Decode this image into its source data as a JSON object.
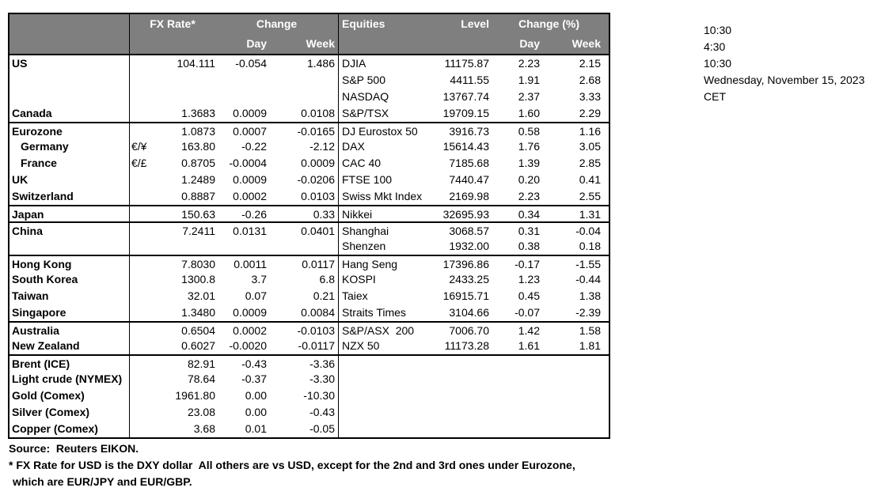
{
  "colors": {
    "header_bg": "#7f7f7f",
    "header_text": "#ffffff",
    "border": "#000000"
  },
  "table": {
    "header": {
      "fx_rate": "FX Rate*",
      "change": "Change",
      "day": "Day",
      "week": "Week",
      "equities": "Equities",
      "level": "Level",
      "change_pct": "Change (%)"
    },
    "rows": [
      {
        "label": "US",
        "indent": false,
        "sep": false,
        "pair": "",
        "fx": "104.111",
        "day": "-0.054",
        "week": "1.486",
        "eq": "DJIA",
        "level": "11175.87",
        "eq_day": "2.23",
        "eq_week": "2.15"
      },
      {
        "label": "",
        "indent": false,
        "sep": false,
        "pair": "",
        "fx": "",
        "day": "",
        "week": "",
        "eq": "S&P 500",
        "level": "4411.55",
        "eq_day": "1.91",
        "eq_week": "2.68"
      },
      {
        "label": "",
        "indent": false,
        "sep": false,
        "pair": "",
        "fx": "",
        "day": "",
        "week": "",
        "eq": "NASDAQ",
        "level": "13767.74",
        "eq_day": "2.37",
        "eq_week": "3.33"
      },
      {
        "label": "Canada",
        "indent": false,
        "sep": false,
        "pair": "",
        "fx": "1.3683",
        "day": "0.0009",
        "week": "0.0108",
        "eq": "S&P/TSX",
        "level": "19709.15",
        "eq_day": "1.60",
        "eq_week": "2.29"
      },
      {
        "label": "Eurozone",
        "indent": false,
        "sep": true,
        "pair": "",
        "fx": "1.0873",
        "day": "0.0007",
        "week": "-0.0165",
        "eq": "DJ Eurostox 50",
        "level": "3916.73",
        "eq_day": "0.58",
        "eq_week": "1.16"
      },
      {
        "label": "Germany",
        "indent": true,
        "sep": false,
        "pair": "€/¥",
        "fx": "163.80",
        "day": "-0.22",
        "week": "-2.12",
        "eq": "DAX",
        "level": "15614.43",
        "eq_day": "1.76",
        "eq_week": "3.05"
      },
      {
        "label": "France",
        "indent": true,
        "sep": false,
        "pair": "€/£",
        "fx": "0.8705",
        "day": "-0.0004",
        "week": "0.0009",
        "eq": "CAC 40",
        "level": "7185.68",
        "eq_day": "1.39",
        "eq_week": "2.85"
      },
      {
        "label": "UK",
        "indent": false,
        "sep": false,
        "pair": "",
        "fx": "1.2489",
        "day": "0.0009",
        "week": "-0.0206",
        "eq": "FTSE 100",
        "level": "7440.47",
        "eq_day": "0.20",
        "eq_week": "0.41"
      },
      {
        "label": "Switzerland",
        "indent": false,
        "sep": false,
        "pair": "",
        "fx": "0.8887",
        "day": "0.0002",
        "week": "0.0103",
        "eq": "Swiss Mkt Index",
        "level": "2169.98",
        "eq_day": "2.23",
        "eq_week": "2.55"
      },
      {
        "label": "Japan",
        "indent": false,
        "sep": true,
        "pair": "",
        "fx": "150.63",
        "day": "-0.26",
        "week": "0.33",
        "eq": "Nikkei",
        "level": "32695.93",
        "eq_day": "0.34",
        "eq_week": "1.31"
      },
      {
        "label": "China",
        "indent": false,
        "sep": true,
        "pair": "",
        "fx": "7.2411",
        "day": "0.0131",
        "week": "0.0401",
        "eq": "Shanghai",
        "level": "3068.57",
        "eq_day": "0.31",
        "eq_week": "-0.04"
      },
      {
        "label": "",
        "indent": false,
        "sep": false,
        "pair": "",
        "fx": "",
        "day": "",
        "week": "",
        "eq": "Shenzen",
        "level": "1932.00",
        "eq_day": "0.38",
        "eq_week": "0.18"
      },
      {
        "label": "Hong Kong",
        "indent": false,
        "sep": true,
        "pair": "",
        "fx": "7.8030",
        "day": "0.0011",
        "week": "0.0117",
        "eq": "Hang Seng",
        "level": "17396.86",
        "eq_day": "-0.17",
        "eq_week": "-1.55"
      },
      {
        "label": "South Korea",
        "indent": false,
        "sep": false,
        "pair": "",
        "fx": "1300.8",
        "day": "3.7",
        "week": "6.8",
        "eq": "KOSPI",
        "level": "2433.25",
        "eq_day": "1.23",
        "eq_week": "-0.44"
      },
      {
        "label": "Taiwan",
        "indent": false,
        "sep": false,
        "pair": "",
        "fx": "32.01",
        "day": "0.07",
        "week": "0.21",
        "eq": "Taiex",
        "level": "16915.71",
        "eq_day": "0.45",
        "eq_week": "1.38"
      },
      {
        "label": "Singapore",
        "indent": false,
        "sep": false,
        "pair": "",
        "fx": "1.3480",
        "day": "0.0009",
        "week": "0.0084",
        "eq": "Straits Times",
        "level": "3104.66",
        "eq_day": "-0.07",
        "eq_week": "-2.39"
      },
      {
        "label": "Australia",
        "indent": false,
        "sep": true,
        "pair": "",
        "fx": "0.6504",
        "day": "0.0002",
        "week": "-0.0103",
        "eq": "S&P/ASX  200",
        "level": "7006.70",
        "eq_day": "1.42",
        "eq_week": "1.58"
      },
      {
        "label": "New Zealand",
        "indent": false,
        "sep": false,
        "pair": "",
        "fx": "0.6027",
        "day": "-0.0020",
        "week": "-0.0117",
        "eq": "NZX 50",
        "level": "11173.28",
        "eq_day": "1.61",
        "eq_week": "1.81"
      },
      {
        "label": "Brent (ICE)",
        "indent": false,
        "sep": true,
        "pair": "",
        "fx": "82.91",
        "day": "-0.43",
        "week": "-3.36",
        "eq": "",
        "level": "",
        "eq_day": "",
        "eq_week": ""
      },
      {
        "label": "Light crude (NYMEX)",
        "indent": false,
        "sep": false,
        "pair": "",
        "fx": "78.64",
        "day": "-0.37",
        "week": "-3.30",
        "eq": "",
        "level": "",
        "eq_day": "",
        "eq_week": ""
      },
      {
        "label": "Gold (Comex)",
        "indent": false,
        "sep": false,
        "pair": "",
        "fx": "1961.80",
        "day": "0.00",
        "week": "-10.30",
        "eq": "",
        "level": "",
        "eq_day": "",
        "eq_week": ""
      },
      {
        "label": "Silver (Comex)",
        "indent": false,
        "sep": false,
        "pair": "",
        "fx": "23.08",
        "day": "0.00",
        "week": "-0.43",
        "eq": "",
        "level": "",
        "eq_day": "",
        "eq_week": ""
      },
      {
        "label": "Copper (Comex)",
        "indent": false,
        "sep": false,
        "pair": "",
        "fx": "3.68",
        "day": "0.01",
        "week": "-0.05",
        "eq": "",
        "level": "",
        "eq_day": "",
        "eq_week": ""
      }
    ]
  },
  "timestamps": {
    "lines": [
      "10:30",
      "4:30",
      "10:30",
      "Wednesday, November 15, 2023",
      "CET"
    ]
  },
  "footer": {
    "source": "Source:  Reuters EIKON.",
    "note1": "* FX Rate for USD is the DXY dollar  All others are vs USD, except for the 2nd and 3rd ones under Eurozone,",
    "note2": "which are EUR/JPY and EUR/GBP."
  }
}
